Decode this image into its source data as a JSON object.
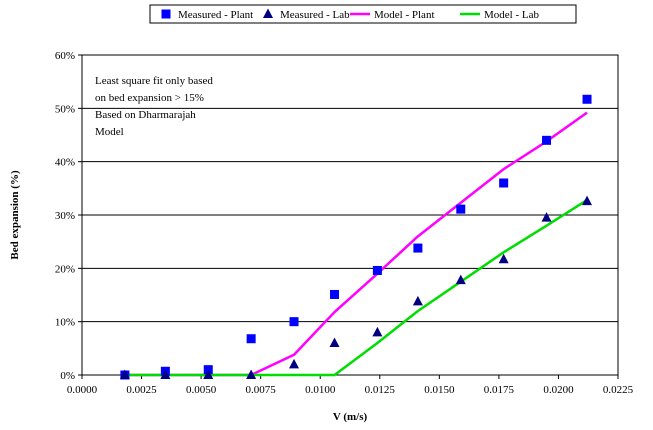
{
  "chart_data": {
    "type": "scatter",
    "xlabel": "V (m/s)",
    "ylabel": "Bed expansion (%)",
    "xlim": [
      0.0,
      0.0225
    ],
    "ylim": [
      0,
      60
    ],
    "x_ticks": [
      "0.0000",
      "0.0025",
      "0.0050",
      "0.0075",
      "0.0100",
      "0.0125",
      "0.0150",
      "0.0175",
      "0.0200",
      "0.0225"
    ],
    "y_ticks": [
      "0%",
      "10%",
      "20%",
      "30%",
      "40%",
      "50%",
      "60%"
    ],
    "grid": "horizontal",
    "legend_position": "top",
    "annotation": [
      "Least square fit only based",
      "on bed    expansion > 15%",
      "Based on Dharmarajah",
      "Model"
    ],
    "series": [
      {
        "name": "Measured - Plant",
        "kind": "marker",
        "marker": "square",
        "color": "#0000ff",
        "x": [
          0.0018,
          0.0035,
          0.0053,
          0.0071,
          0.0089,
          0.0106,
          0.0124,
          0.0141,
          0.0159,
          0.0177,
          0.0195,
          0.0212
        ],
        "y": [
          0.0,
          0.7,
          1.0,
          6.8,
          10.0,
          15.1,
          19.6,
          23.8,
          31.1,
          36.0,
          44.0,
          51.7
        ]
      },
      {
        "name": "Measured - Lab",
        "kind": "marker",
        "marker": "triangle",
        "color": "#000080",
        "x": [
          0.0018,
          0.0035,
          0.0053,
          0.0071,
          0.0089,
          0.0106,
          0.0124,
          0.0141,
          0.0159,
          0.0177,
          0.0195,
          0.0212
        ],
        "y": [
          0.0,
          0.0,
          0.0,
          0.0,
          2.0,
          6.0,
          8.0,
          13.8,
          17.8,
          21.7,
          29.5,
          32.6
        ]
      },
      {
        "name": "Model - Plant",
        "kind": "line",
        "color": "#ff00ff",
        "x": [
          0.0018,
          0.0035,
          0.0053,
          0.0071,
          0.0089,
          0.0106,
          0.0124,
          0.0141,
          0.0159,
          0.0177,
          0.0195,
          0.0212
        ],
        "y": [
          0.0,
          0.0,
          0.0,
          0.0,
          3.8,
          11.8,
          19.0,
          26.0,
          32.3,
          38.6,
          43.8,
          49.2
        ]
      },
      {
        "name": "Model - Lab",
        "kind": "line",
        "color": "#00dd00",
        "x": [
          0.0018,
          0.0035,
          0.0053,
          0.0071,
          0.0089,
          0.0106,
          0.0124,
          0.0141,
          0.0159,
          0.0177,
          0.0195,
          0.0212
        ],
        "y": [
          0.0,
          0.0,
          0.0,
          0.0,
          0.0,
          0.0,
          6.0,
          12.0,
          17.5,
          23.0,
          28.0,
          32.8
        ]
      }
    ]
  }
}
